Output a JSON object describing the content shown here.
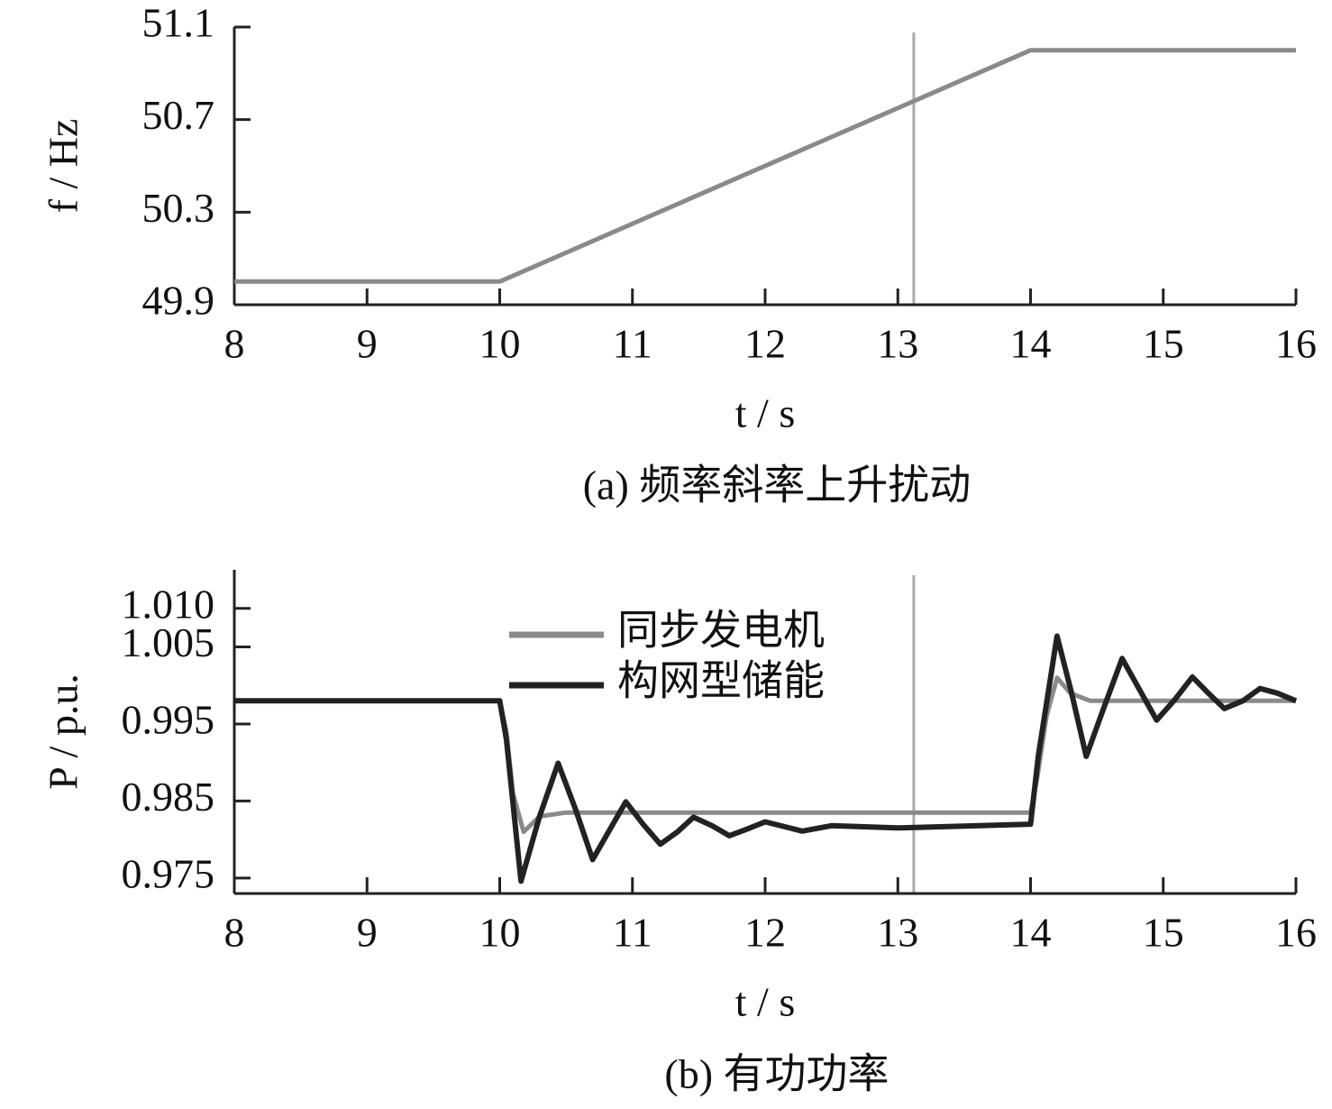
{
  "chart_data": [
    {
      "type": "line",
      "xlabel": "t / s",
      "ylabel": "f / Hz",
      "caption": "(a) 频率斜率上升扰动",
      "xlim": [
        8,
        16
      ],
      "xticks": [
        8,
        9,
        10,
        11,
        12,
        13,
        14,
        15,
        16
      ],
      "ylim": [
        49.9,
        51.1
      ],
      "yticks": [
        49.9,
        50.3,
        50.7,
        51.1
      ],
      "vline": 13.12,
      "series": [
        {
          "color": "#8a8a8a",
          "x": [
            8,
            10,
            14,
            16
          ],
          "values": [
            50,
            50,
            51,
            51
          ]
        }
      ]
    },
    {
      "type": "line",
      "xlabel": "t / s",
      "ylabel": "P / p.u.",
      "caption": "(b) 有功功率",
      "xlim": [
        8,
        16
      ],
      "xticks": [
        8,
        9,
        10,
        11,
        12,
        13,
        14,
        15,
        16
      ],
      "ylim": [
        0.973,
        1.015
      ],
      "yticks": [
        {
          "value": 1.01,
          "label": "1.010"
        },
        1.005,
        0.995,
        0.985,
        0.975
      ],
      "vline": 13.12,
      "legend": "upper center",
      "series": [
        {
          "name": "同步发电机",
          "color": "#8a8a8a",
          "x": [
            8,
            10,
            10.05,
            10.1,
            10.18,
            10.3,
            10.5,
            14,
            14.05,
            14.12,
            14.2,
            14.3,
            14.45,
            16
          ],
          "values": [
            0.998,
            0.998,
            0.994,
            0.986,
            0.981,
            0.983,
            0.9835,
            0.9835,
            0.988,
            0.996,
            1.001,
            0.999,
            0.998,
            0.998
          ]
        },
        {
          "name": "构网型储能",
          "color": "#222222",
          "x": [
            8,
            10,
            10.05,
            10.16,
            10.3,
            10.44,
            10.57,
            10.7,
            10.82,
            10.95,
            11.08,
            11.21,
            11.34,
            11.46,
            11.6,
            11.73,
            11.87,
            12.0,
            12.14,
            12.28,
            12.5,
            13,
            14,
            14.06,
            14.2,
            14.31,
            14.42,
            14.55,
            14.69,
            14.82,
            14.95,
            15.08,
            15.22,
            15.34,
            15.46,
            15.6,
            15.73,
            15.86,
            16
          ],
          "values": [
            0.998,
            0.998,
            0.993,
            0.9746,
            0.983,
            0.9899,
            0.984,
            0.9774,
            0.981,
            0.9849,
            0.982,
            0.9794,
            0.981,
            0.9829,
            0.9818,
            0.9805,
            0.9814,
            0.9823,
            0.9817,
            0.9811,
            0.9818,
            0.9815,
            0.982,
            0.991,
            1.0064,
            0.999,
            0.9908,
            0.997,
            1.0035,
            0.9995,
            0.9955,
            0.998,
            1.0011,
            0.999,
            0.997,
            0.998,
            0.9996,
            0.999,
            0.998
          ]
        }
      ]
    }
  ]
}
